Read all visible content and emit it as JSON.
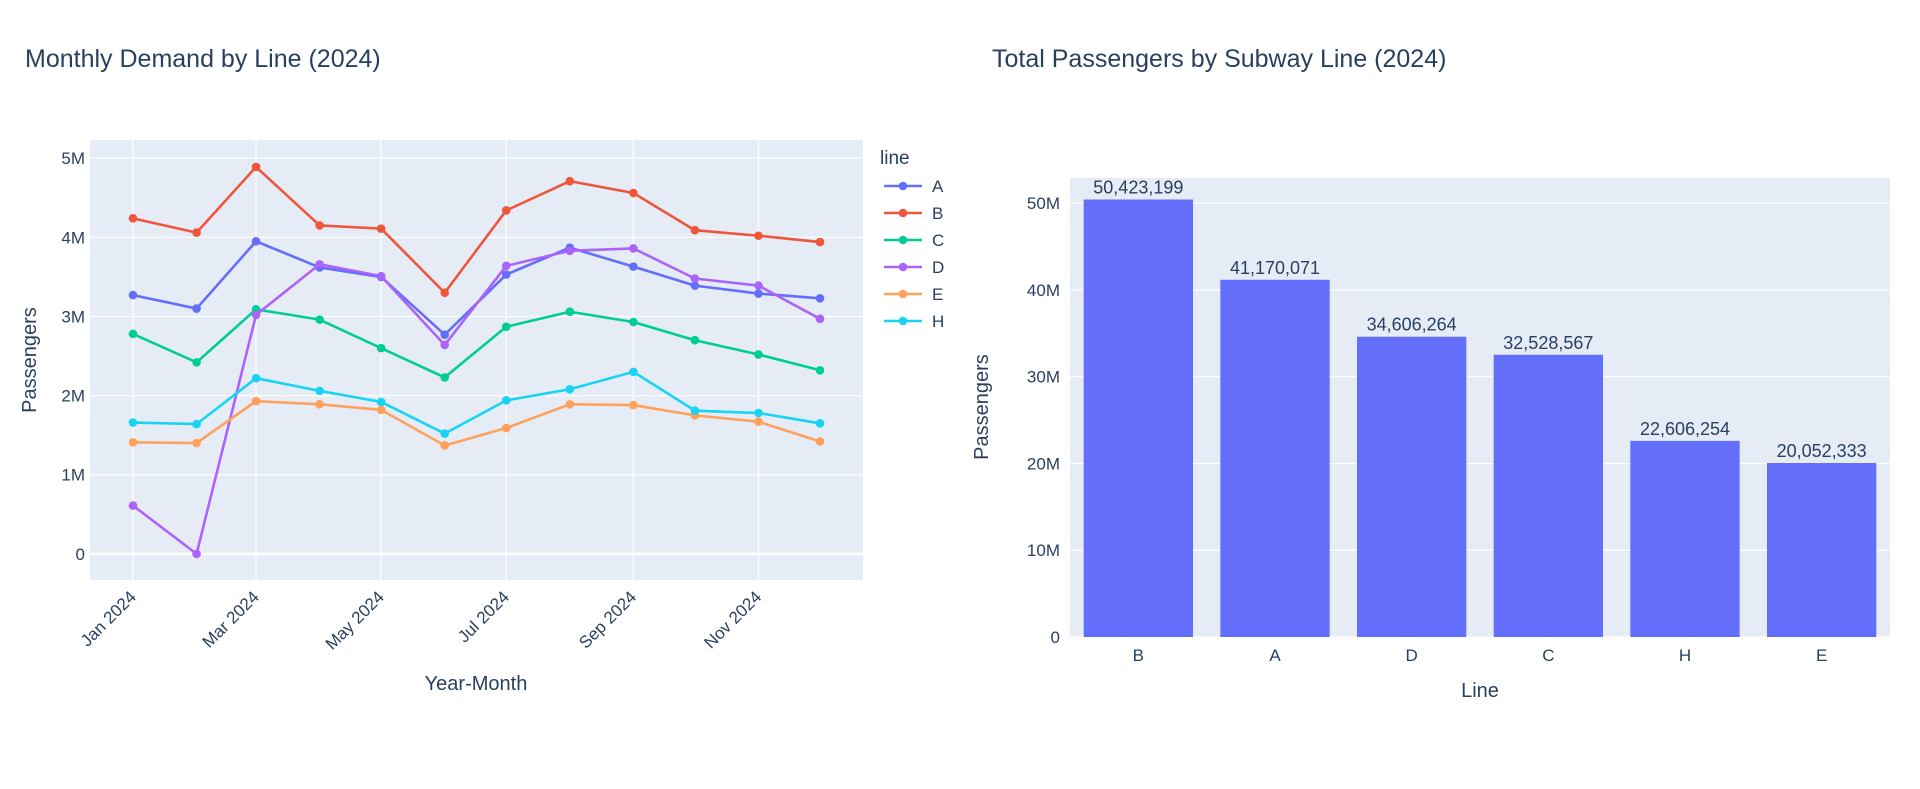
{
  "chart_data": [
    {
      "type": "line",
      "title": "Monthly Demand by Line (2024)",
      "xlabel": "Year-Month",
      "ylabel": "Passengers",
      "legend_title": "line",
      "x": [
        "2024-01",
        "2024-02",
        "2024-03",
        "2024-04",
        "2024-05",
        "2024-06",
        "2024-07",
        "2024-08",
        "2024-09",
        "2024-10",
        "2024-11",
        "2024-12"
      ],
      "xticks": [
        "Jan 2024",
        "Mar 2024",
        "May 2024",
        "Jul 2024",
        "Sep 2024",
        "Nov 2024"
      ],
      "yticks": [
        "0",
        "1M",
        "2M",
        "3M",
        "4M",
        "5M"
      ],
      "ylim": [
        -330000,
        5230000
      ],
      "grid": true,
      "legend_position": "right",
      "series": [
        {
          "name": "A",
          "color": "#636efa",
          "values": [
            3270000,
            3100000,
            3950000,
            3620000,
            3500000,
            2770000,
            3530000,
            3870000,
            3630000,
            3390000,
            3290000,
            3230000
          ]
        },
        {
          "name": "B",
          "color": "#ef553b",
          "values": [
            4240000,
            4060000,
            4890000,
            4150000,
            4110000,
            3300000,
            4340000,
            4710000,
            4560000,
            4090000,
            4020000,
            3940000
          ]
        },
        {
          "name": "C",
          "color": "#00cc96",
          "values": [
            2780000,
            2420000,
            3090000,
            2960000,
            2600000,
            2230000,
            2870000,
            3060000,
            2930000,
            2700000,
            2520000,
            2320000
          ]
        },
        {
          "name": "D",
          "color": "#ab63fa",
          "values": [
            610000,
            0,
            3020000,
            3660000,
            3510000,
            2640000,
            3640000,
            3830000,
            3860000,
            3480000,
            3390000,
            2970000
          ]
        },
        {
          "name": "E",
          "color": "#ffa15a",
          "values": [
            1410000,
            1400000,
            1930000,
            1890000,
            1820000,
            1370000,
            1590000,
            1890000,
            1880000,
            1750000,
            1670000,
            1420000
          ]
        },
        {
          "name": "H",
          "color": "#19d3f3",
          "values": [
            1660000,
            1640000,
            2220000,
            2060000,
            1920000,
            1520000,
            1940000,
            2080000,
            2300000,
            1810000,
            1780000,
            1650000
          ]
        }
      ]
    },
    {
      "type": "bar",
      "title": "Total Passengers by Subway Line (2024)",
      "xlabel": "Line",
      "ylabel": "Passengers",
      "categories": [
        "B",
        "A",
        "D",
        "C",
        "H",
        "E"
      ],
      "values": [
        50423199,
        41170071,
        34606264,
        32528567,
        22606254,
        20052333
      ],
      "labels": [
        "50,423,199",
        "41,170,071",
        "34,606,264",
        "32,528,567",
        "22,606,254",
        "20,052,333"
      ],
      "yticks": [
        "0",
        "10M",
        "20M",
        "30M",
        "40M",
        "50M"
      ],
      "ylim": [
        0,
        52900000
      ],
      "color": "#636efa",
      "grid": true
    }
  ]
}
